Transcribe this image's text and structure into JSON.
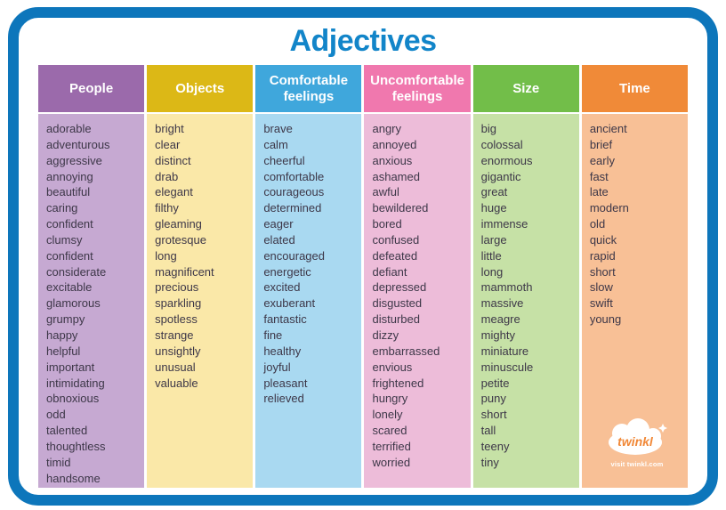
{
  "page": {
    "title": "Adjectives",
    "border_color": "#0d76bb",
    "title_color": "#1285c9",
    "word_text_color": "#3d3748"
  },
  "columns": [
    {
      "label": "People",
      "header_color": "#9b6aab",
      "body_color": "#c6a9d2",
      "words": [
        "adorable",
        "adventurous",
        "aggressive",
        "annoying",
        "beautiful",
        "caring",
        "confident",
        "clumsy",
        "confident",
        "considerate",
        "excitable",
        "glamorous",
        "grumpy",
        "happy",
        "helpful",
        "important",
        "intimidating",
        "obnoxious",
        "odd",
        "talented",
        "thoughtless",
        "timid",
        "handsome"
      ]
    },
    {
      "label": "Objects",
      "header_color": "#dcb816",
      "body_color": "#fae8a8",
      "words": [
        "bright",
        "clear",
        "distinct",
        "drab",
        "elegant",
        "filthy",
        "gleaming",
        "grotesque",
        "long",
        "magnificent",
        "precious",
        "sparkling",
        "spotless",
        "strange",
        "unsightly",
        "unusual",
        "valuable"
      ]
    },
    {
      "label": "Comfortable feelings",
      "header_color": "#3fa7dc",
      "body_color": "#a9d9f1",
      "words": [
        "brave",
        "calm",
        "cheerful",
        "comfortable",
        "courageous",
        "determined",
        "eager",
        "elated",
        "encouraged",
        "energetic",
        "excited",
        "exuberant",
        "fantastic",
        "fine",
        "healthy",
        "joyful",
        "pleasant",
        "relieved"
      ]
    },
    {
      "label": "Uncomfortable feelings",
      "header_color": "#f078ae",
      "body_color": "#edbcd9",
      "words": [
        "angry",
        "annoyed",
        "anxious",
        "ashamed",
        "awful",
        "bewildered",
        "bored",
        "confused",
        "defeated",
        "defiant",
        "depressed",
        "disgusted",
        "disturbed",
        "dizzy",
        "embarrassed",
        "envious",
        "frightened",
        "hungry",
        "lonely",
        "scared",
        "terrified",
        "worried"
      ]
    },
    {
      "label": "Size",
      "header_color": "#72be49",
      "body_color": "#c6e1a6",
      "words": [
        "big",
        "colossal",
        "enormous",
        "gigantic",
        "great",
        "huge",
        "immense",
        "large",
        "little",
        "long",
        "mammoth",
        "massive",
        "meagre",
        "mighty",
        "miniature",
        "minuscule",
        "petite",
        "puny",
        "short",
        "tall",
        "teeny",
        "tiny"
      ]
    },
    {
      "label": "Time",
      "header_color": "#f08a38",
      "body_color": "#f8c096",
      "words": [
        "ancient",
        "brief",
        "early",
        "fast",
        "late",
        "modern",
        "old",
        "quick",
        "rapid",
        "short",
        "slow",
        "swift",
        "young"
      ]
    }
  ],
  "logo": {
    "brand": "twinkl",
    "caption": "visit twinkl.com"
  }
}
